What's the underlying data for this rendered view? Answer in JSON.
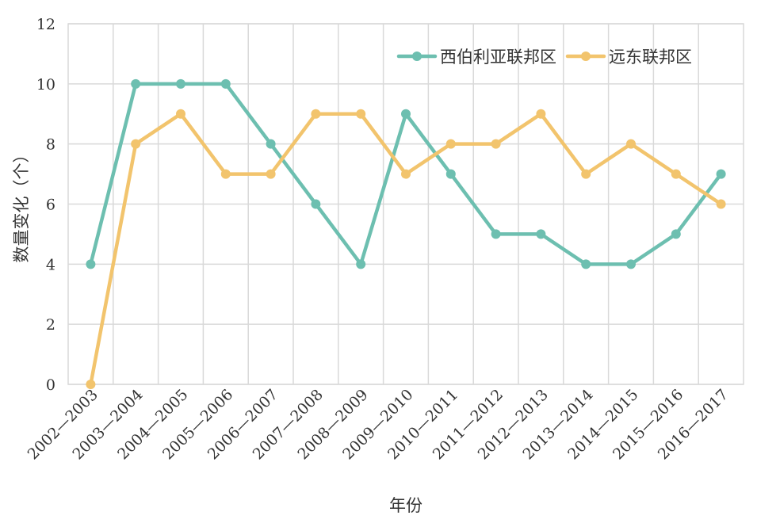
{
  "chart_data": {
    "type": "line",
    "title": "",
    "xlabel": "年份",
    "ylabel": "数量变化（个）",
    "ylim": [
      0,
      12
    ],
    "yticks": [
      0,
      2,
      4,
      6,
      8,
      10,
      12
    ],
    "grid": true,
    "legend_position": "top-right",
    "categories": [
      "2002—2003",
      "2003—2004",
      "2004—2005",
      "2005—2006",
      "2006—2007",
      "2007—2008",
      "2008—2009",
      "2009—2010",
      "2010—2011",
      "2011—2012",
      "2012—2013",
      "2013—2014",
      "2014—2015",
      "2015—2016",
      "2016—2017"
    ],
    "series": [
      {
        "name": "西伯利亚联邦区",
        "color": "#6dbfb0",
        "values": [
          4,
          10,
          10,
          10,
          8,
          6,
          4,
          9,
          7,
          5,
          5,
          4,
          4,
          5,
          7
        ]
      },
      {
        "name": "远东联邦区",
        "color": "#f2c46d",
        "values": [
          0,
          8,
          9,
          7,
          7,
          9,
          9,
          7,
          8,
          8,
          9,
          7,
          8,
          7,
          6
        ]
      }
    ]
  }
}
